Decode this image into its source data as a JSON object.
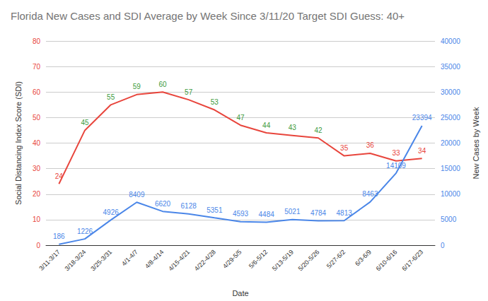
{
  "chart_data": {
    "type": "line",
    "title": "Florida New Cases and SDI Average by Week Since 3/11/20 Target SDI Guess: 40+",
    "x_label": "Date",
    "y_label": "Social Distancing Index Score (SDI)",
    "y2_label": "New Cases by Week",
    "categories": [
      "3/11-3/17",
      "3/18-3/24",
      "3/25-3/31",
      "4/1-4/7",
      "4/8-4/14",
      "4/15-4/21",
      "4/22-4/28",
      "4/29-5/5",
      "5/6-5/12",
      "5/13-5/19",
      "5/20-5/26",
      "5/27-6/2",
      "6/3-6/9",
      "6/10-6/16",
      "6/17-6/23"
    ],
    "series": [
      {
        "color": "#e8453c",
        "colors": [
          "#e8453c",
          "#3c9a3c",
          "#3c9a3c",
          "#3c9a3c",
          "#3c9a3c",
          "#3c9a3c",
          "#3c9a3c",
          "#3c9a3c",
          "#3c9a3c",
          "#3c9a3c",
          "#3c9a3c",
          "#e8453c",
          "#e8453c",
          "#e8453c",
          "#e8453c"
        ],
        "values": [
          24,
          45,
          55,
          59,
          60,
          57,
          53,
          47,
          44,
          43,
          42,
          35,
          36,
          33,
          34
        ]
      },
      {
        "axis": "y2",
        "color": "#4a86e8",
        "values": [
          186,
          1226,
          4926,
          8409,
          6620,
          6128,
          5351,
          4593,
          4484,
          5021,
          4784,
          4813,
          8463,
          14109,
          23394
        ]
      }
    ],
    "ylim": [
      0,
      80
    ],
    "yticks": [
      0,
      10,
      20,
      30,
      40,
      50,
      60,
      70,
      80
    ],
    "y2lim": [
      0,
      40000
    ],
    "y2ticks": [
      0,
      5000,
      10000,
      15000,
      20000,
      25000,
      30000,
      35000,
      40000
    ],
    "grid": true,
    "data_labels": true
  }
}
